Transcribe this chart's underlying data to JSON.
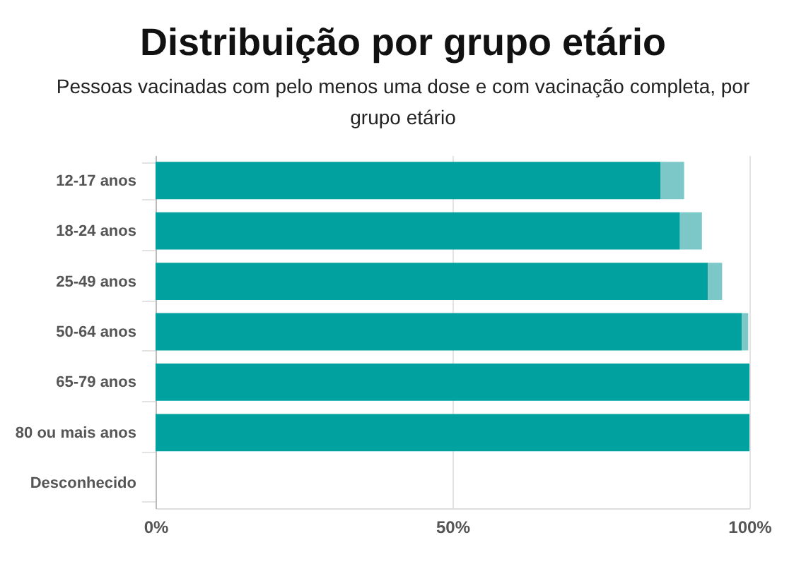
{
  "chart_data": {
    "type": "bar",
    "orientation": "horizontal",
    "stacked": true,
    "title": "Distribuição por grupo etário",
    "subtitle": "Pessoas vacinadas com pelo menos uma dose e com vacinação completa, por grupo etário",
    "categories": [
      "12-17 anos",
      "18-24 anos",
      "25-49 anos",
      "50-64 anos",
      "65-79 anos",
      "80 ou mais anos",
      "Desconhecido"
    ],
    "series": [
      {
        "color": "#00a19f",
        "values": [
          85,
          88.3,
          93,
          98.7,
          100,
          100,
          null
        ]
      },
      {
        "color": "#7cc8c8",
        "values": [
          4,
          3.7,
          2.4,
          1.1,
          0,
          0,
          null
        ]
      }
    ],
    "xlim": [
      0,
      100
    ],
    "xticks": [
      {
        "value": 0,
        "label": "0%"
      },
      {
        "value": 50,
        "label": "50%"
      },
      {
        "value": 100,
        "label": "100%"
      }
    ],
    "grid": "x"
  }
}
